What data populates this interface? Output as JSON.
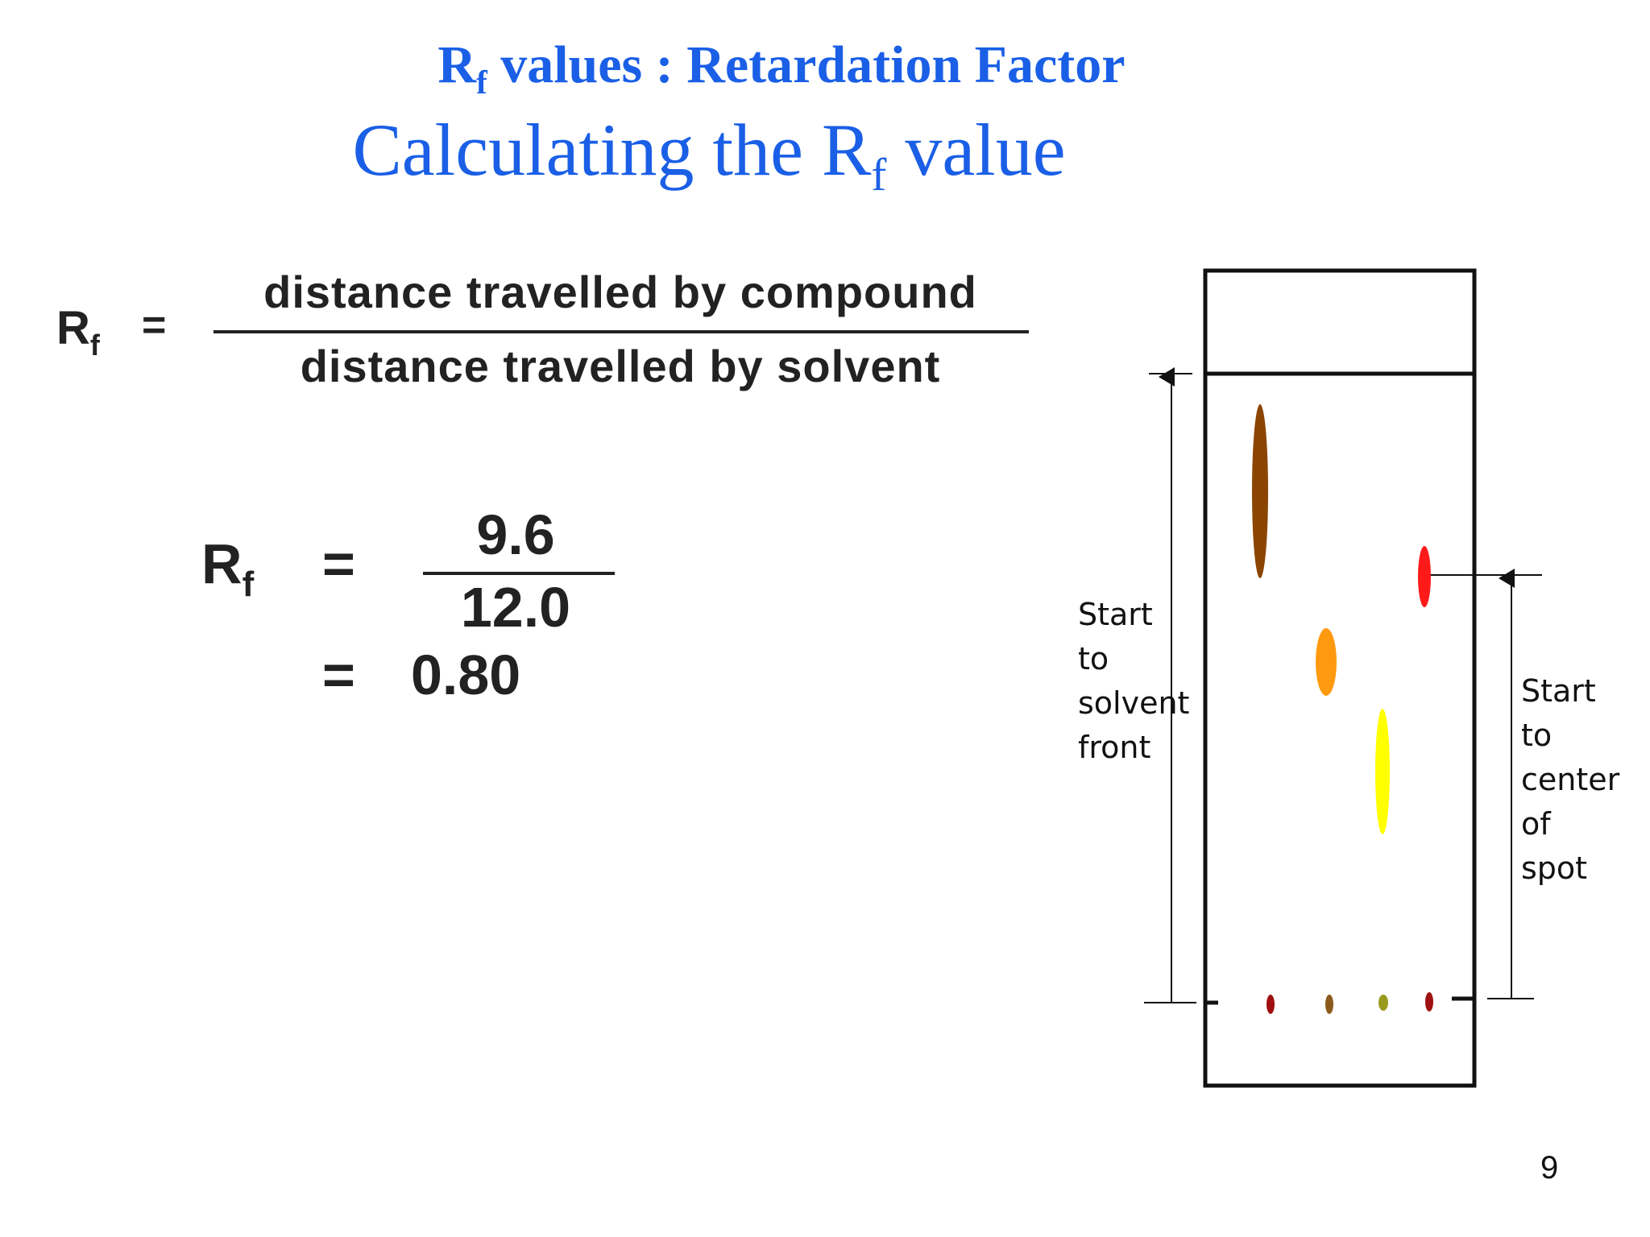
{
  "title": {
    "line1_prefix": "R",
    "line1_sub": "f",
    "line1_suffix": " values : Retardation Factor",
    "line2_prefix": "Calculating the R",
    "line2_sub": "f",
    "line2_suffix": " value"
  },
  "formula": {
    "symbol": "R",
    "symbol_sub": "f",
    "equals": "=",
    "numerator": "distance travelled by compound",
    "denominator": "distance travelled by solvent"
  },
  "calculation": {
    "symbol": "R",
    "symbol_sub": "f",
    "equals": "=",
    "numerator": "9.6",
    "denominator": "12.0",
    "result_equals": "=",
    "result": "0.80"
  },
  "diagram": {
    "left_label": [
      "Start",
      "to",
      "solvent",
      "front"
    ],
    "right_label": [
      "Start",
      "to",
      "center",
      "of",
      "spot"
    ],
    "colors": {
      "brown_spot": "#8b4500",
      "red_spot": "#ff1a1a",
      "orange_spot": "#ff9a10",
      "yellow_spot": "#ffff00",
      "origin_red": "#a01010",
      "origin_brown": "#8b5a1a",
      "origin_olive": "#9a9a20"
    }
  },
  "page_number": "9"
}
